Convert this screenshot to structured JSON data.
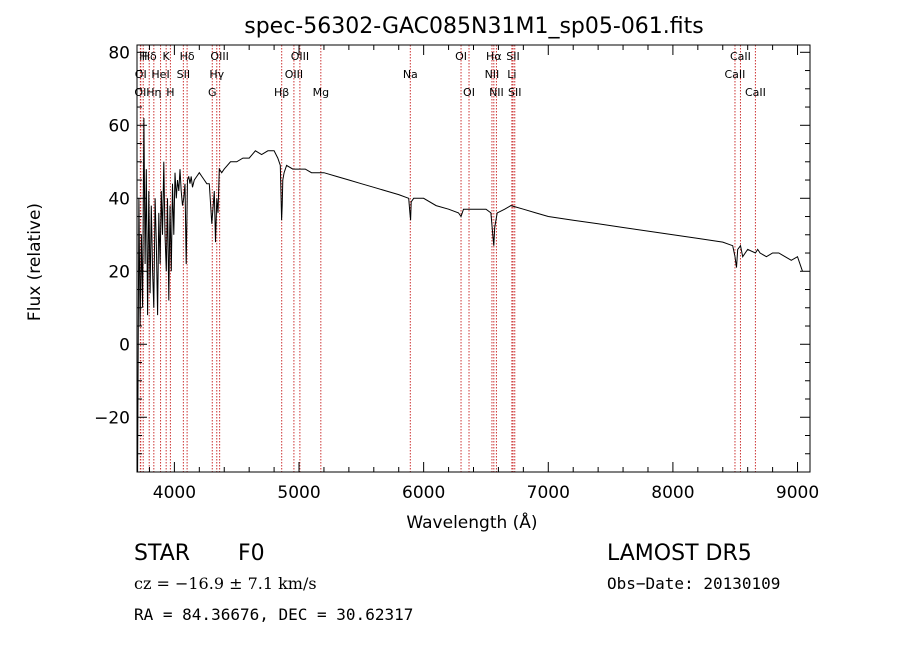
{
  "chart_data": {
    "type": "line",
    "title": "spec-56302-GAC085N31M1_sp05-061.fits",
    "xlabel": "Wavelength (Å)",
    "ylabel": "Flux (relative)",
    "xlim": [
      3700,
      9100
    ],
    "ylim": [
      -35,
      82
    ],
    "xticks": [
      4000,
      5000,
      6000,
      7000,
      8000,
      9000
    ],
    "yticks": [
      -20,
      0,
      20,
      40,
      60,
      80
    ],
    "grid": false,
    "line_color": "#000000",
    "marker_color": "#cc3333",
    "series": [
      {
        "x": [
          3705,
          3715,
          3725,
          3735,
          3745,
          3755,
          3765,
          3775,
          3785,
          3795,
          3805,
          3815,
          3825,
          3835,
          3845,
          3855,
          3865,
          3875,
          3885,
          3895,
          3905,
          3915,
          3925,
          3935,
          3945,
          3955,
          3965,
          3975,
          3985,
          3995,
          4005,
          4015,
          4025,
          4035,
          4045,
          4055,
          4065,
          4075,
          4085,
          4095,
          4105,
          4115,
          4125,
          4135,
          4145,
          4160,
          4180,
          4200,
          4220,
          4240,
          4260,
          4280,
          4300,
          4320,
          4330,
          4340,
          4350,
          4360,
          4380,
          4400,
          4450,
          4500,
          4550,
          4600,
          4650,
          4700,
          4750,
          4800,
          4830,
          4850,
          4860,
          4865,
          4870,
          4880,
          4900,
          4950,
          5000,
          5050,
          5100,
          5150,
          5200,
          5300,
          5400,
          5500,
          5600,
          5700,
          5800,
          5880,
          5890,
          5895,
          5900,
          5920,
          6000,
          6100,
          6200,
          6280,
          6300,
          6320,
          6400,
          6500,
          6540,
          6555,
          6563,
          6570,
          6590,
          6650,
          6700,
          6800,
          6900,
          7000,
          7200,
          7400,
          7600,
          7800,
          8000,
          8200,
          8400,
          8480,
          8498,
          8510,
          8520,
          8542,
          8560,
          8600,
          8662,
          8680,
          8700,
          8750,
          8800,
          8850,
          8900,
          8950,
          9000,
          9040
        ],
        "y": [
          -35,
          40,
          5,
          30,
          10,
          62,
          22,
          48,
          8,
          42,
          14,
          38,
          20,
          10,
          40,
          28,
          8,
          36,
          22,
          42,
          30,
          50,
          30,
          20,
          40,
          12,
          38,
          20,
          44,
          30,
          47,
          40,
          45,
          42,
          48,
          42,
          38,
          40,
          44,
          22,
          45,
          46,
          44,
          46,
          43,
          45,
          46,
          47,
          46,
          45,
          44,
          44,
          33,
          42,
          28,
          40,
          36,
          48,
          47,
          48,
          50,
          50,
          51,
          51,
          53,
          52,
          53,
          53,
          51,
          49,
          34,
          38,
          45,
          47,
          49,
          48,
          48,
          48,
          47,
          47,
          47,
          46,
          45,
          44,
          43,
          42,
          41,
          40,
          36,
          34,
          39,
          40,
          40,
          38,
          37,
          36,
          35,
          37,
          37,
          37,
          36,
          30,
          27,
          32,
          36,
          37,
          38,
          37,
          36,
          35,
          34,
          33,
          32,
          31,
          30,
          29,
          28,
          27,
          24,
          21,
          26,
          27,
          24,
          26,
          25,
          26,
          25,
          24,
          25,
          25,
          24,
          23,
          24,
          20
        ]
      }
    ],
    "lines": [
      {
        "label": "OI",
        "x": 3727,
        "row": 2
      },
      {
        "label": "OI",
        "x": 3730,
        "row": 1
      },
      {
        "label": "H",
        "x": 3750,
        "row": 0
      },
      {
        "label": "Hη",
        "x": 3835,
        "row": 2
      },
      {
        "label": "Hδ",
        "x": 3798,
        "row": 0
      },
      {
        "label": "HeI",
        "x": 3889,
        "row": 1
      },
      {
        "label": "K",
        "x": 3934,
        "row": 0
      },
      {
        "label": "H",
        "x": 3968,
        "row": 2
      },
      {
        "label": "SII",
        "x": 4072,
        "row": 1
      },
      {
        "label": "Hδ",
        "x": 4102,
        "row": 0
      },
      {
        "label": "OIII",
        "x": 4363,
        "row": 0
      },
      {
        "label": "Hγ",
        "x": 4340,
        "row": 1
      },
      {
        "label": "G",
        "x": 4304,
        "row": 2
      },
      {
        "label": "Hβ",
        "x": 4861,
        "row": 2
      },
      {
        "label": "OIII",
        "x": 4959,
        "row": 1
      },
      {
        "label": "OIII",
        "x": 5007,
        "row": 0
      },
      {
        "label": "Mg",
        "x": 5175,
        "row": 2
      },
      {
        "label": "Na",
        "x": 5893,
        "row": 1
      },
      {
        "label": "OI",
        "x": 6300,
        "row": 0
      },
      {
        "label": "OI",
        "x": 6364,
        "row": 2
      },
      {
        "label": "Hα",
        "x": 6563,
        "row": 0
      },
      {
        "label": "NII",
        "x": 6548,
        "row": 1
      },
      {
        "label": "NII",
        "x": 6584,
        "row": 2
      },
      {
        "label": "SII",
        "x": 6717,
        "row": 0
      },
      {
        "label": "Li",
        "x": 6708,
        "row": 1
      },
      {
        "label": "SII",
        "x": 6731,
        "row": 2
      },
      {
        "label": "CaII",
        "x": 8498,
        "row": 1
      },
      {
        "label": "CaII",
        "x": 8542,
        "row": 0
      },
      {
        "label": "CaII",
        "x": 8662,
        "row": 2
      }
    ]
  },
  "footer": {
    "object_class": "STAR",
    "subclass": "F0",
    "survey": "LAMOST DR5",
    "cz": "cz = −16.9 ± 7.1 km/s",
    "obs_date": "Obs−Date: 20130109",
    "coords": "RA =  84.36676, DEC =  30.62317"
  }
}
